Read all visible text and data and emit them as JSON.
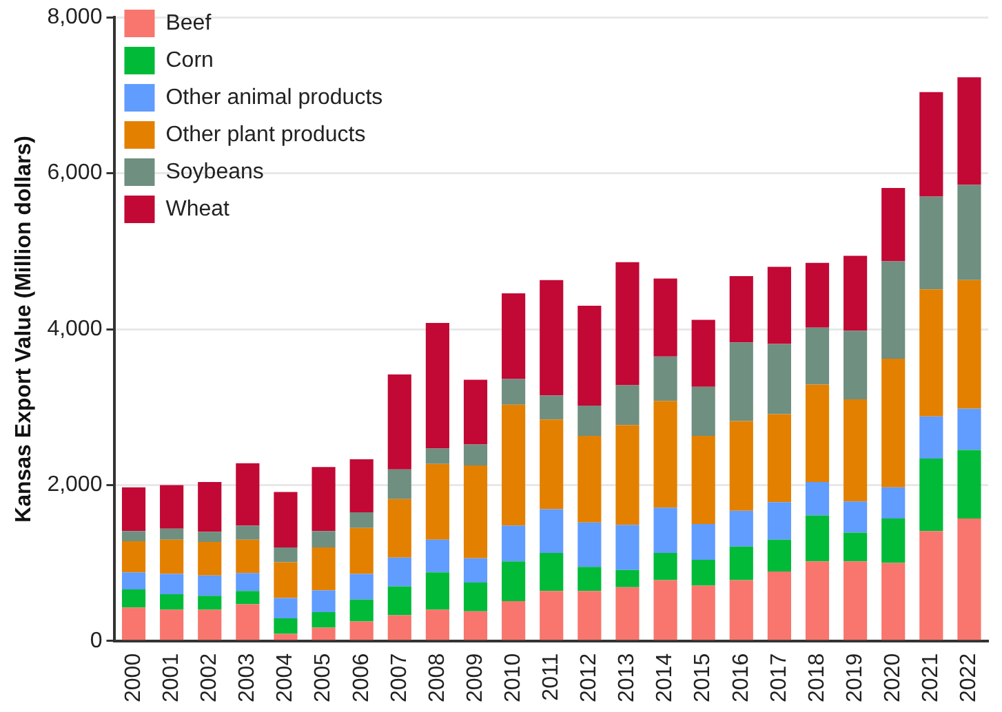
{
  "chart_data": {
    "type": "bar",
    "stacked": true,
    "ylabel": "Kansas Export Value (Million dollars)",
    "categories": [
      "2000",
      "2001",
      "2002",
      "2003",
      "2004",
      "2005",
      "2006",
      "2007",
      "2008",
      "2009",
      "2010",
      "2011",
      "2012",
      "2013",
      "2014",
      "2015",
      "2016",
      "2017",
      "2018",
      "2019",
      "2020",
      "2021",
      "2022"
    ],
    "series": [
      {
        "name": "Beef",
        "color": "#f8766d",
        "values": [
          430,
          400,
          400,
          470,
          90,
          170,
          250,
          330,
          400,
          380,
          510,
          640,
          640,
          690,
          780,
          710,
          780,
          890,
          1020,
          1020,
          1000,
          1410,
          1570
        ]
      },
      {
        "name": "Corn",
        "color": "#00ba38",
        "values": [
          230,
          200,
          180,
          170,
          200,
          200,
          280,
          370,
          480,
          370,
          510,
          490,
          310,
          220,
          350,
          330,
          430,
          410,
          590,
          370,
          570,
          930,
          880
        ]
      },
      {
        "name": "Other animal products",
        "color": "#619cff",
        "values": [
          220,
          260,
          260,
          230,
          260,
          280,
          330,
          370,
          420,
          310,
          460,
          560,
          570,
          580,
          580,
          460,
          460,
          480,
          430,
          400,
          400,
          540,
          530
        ]
      },
      {
        "name": "Other plant products",
        "color": "#e38000",
        "values": [
          400,
          440,
          430,
          430,
          460,
          550,
          590,
          750,
          970,
          1190,
          1550,
          1150,
          1110,
          1280,
          1370,
          1130,
          1150,
          1130,
          1250,
          1310,
          1650,
          1630,
          1650
        ]
      },
      {
        "name": "Soybeans",
        "color": "#6f8f80",
        "values": [
          130,
          140,
          130,
          180,
          190,
          210,
          200,
          380,
          200,
          270,
          330,
          310,
          390,
          510,
          570,
          630,
          1010,
          900,
          730,
          880,
          1250,
          1190,
          1220
        ]
      },
      {
        "name": "Wheat",
        "color": "#c20834",
        "values": [
          560,
          560,
          640,
          800,
          710,
          820,
          680,
          1220,
          1610,
          830,
          1100,
          1480,
          1280,
          1580,
          1000,
          860,
          850,
          990,
          830,
          960,
          940,
          1340,
          1380
        ]
      }
    ],
    "ylim": [
      0,
      8000
    ],
    "yticks": [
      0,
      {
        "value": 2000,
        "label": "2,000"
      },
      {
        "value": 4000,
        "label": "4,000"
      },
      {
        "value": 6000,
        "label": "6,000"
      },
      {
        "value": 8000,
        "label": "8,000"
      }
    ],
    "grid": "y",
    "legend": "top left"
  }
}
